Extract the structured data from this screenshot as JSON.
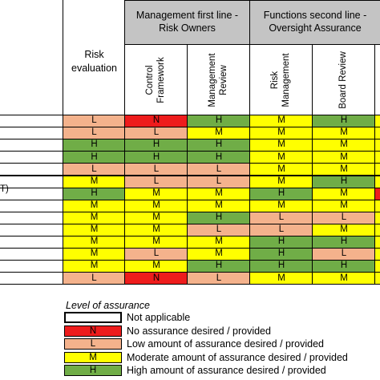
{
  "header": {
    "risk_evaluation": "Risk evaluation",
    "group_first_line": "Management first line -Risk Owners",
    "group_second_line": "Functions second line - Oversight Assurance",
    "col_control_framework": "Control\nFramework",
    "col_management_review": "Management\nReview",
    "col_risk_management": "Risk\nManagement",
    "col_board_review": "Board Review"
  },
  "row_label_fragment": "T)",
  "levels": {
    "N": {
      "label": "N",
      "color": "#ee1c1c"
    },
    "L": {
      "label": "L",
      "color": "#f4b28c"
    },
    "M": {
      "label": "M",
      "color": "#ffff00"
    },
    "H": {
      "label": "H",
      "color": "#70ad47"
    }
  },
  "rows": [
    [
      "L",
      "N",
      "H",
      "M",
      "H",
      "M"
    ],
    [
      "L",
      "L",
      "M",
      "M",
      "M",
      "M"
    ],
    [
      "H",
      "H",
      "H",
      "M",
      "M",
      "M"
    ],
    [
      "H",
      "H",
      "H",
      "M",
      "M",
      "M"
    ],
    [
      "L",
      "L",
      "L",
      "M",
      "M",
      "M"
    ],
    [
      "M",
      "L",
      "L",
      "M",
      "H",
      "M"
    ],
    [
      "H",
      "M",
      "M",
      "H",
      "M",
      "N"
    ],
    [
      "M",
      "M",
      "M",
      "M",
      "M",
      "M"
    ],
    [
      "M",
      "M",
      "H",
      "L",
      "L",
      "M"
    ],
    [
      "M",
      "M",
      "L",
      "L",
      "M",
      "M"
    ],
    [
      "M",
      "M",
      "M",
      "H",
      "H",
      "M"
    ],
    [
      "M",
      "L",
      "M",
      "H",
      "L",
      "M"
    ],
    [
      "M",
      "M",
      "H",
      "H",
      "H",
      "M"
    ],
    [
      "L",
      "N",
      "L",
      "M",
      "M",
      "M"
    ]
  ],
  "legend": {
    "title": "Level of assurance",
    "items": [
      {
        "code": "",
        "color": "#ffffff",
        "text": "Not applicable"
      },
      {
        "code": "N",
        "color": "#ee1c1c",
        "text": "No assurance desired / provided"
      },
      {
        "code": "L",
        "color": "#f4b28c",
        "text": "Low amount of assurance desired / provided"
      },
      {
        "code": "M",
        "color": "#ffff00",
        "text": "Moderate amount of assurance desired / provided"
      },
      {
        "code": "H",
        "color": "#70ad47",
        "text": "High amount of assurance desired / provided"
      }
    ]
  }
}
